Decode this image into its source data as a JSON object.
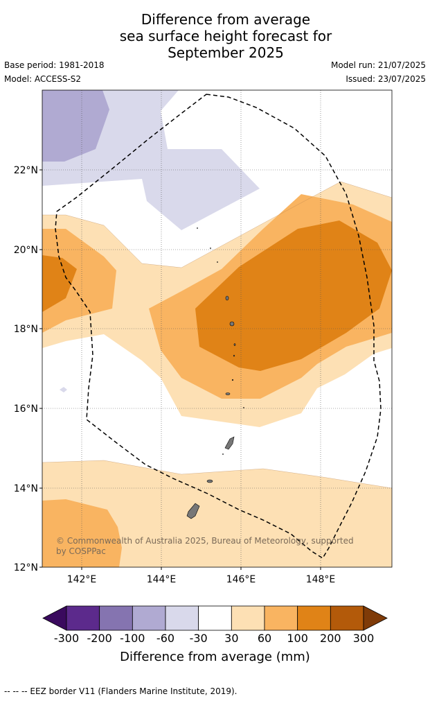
{
  "title_lines": [
    "Difference from average",
    "sea surface height forecast for",
    "September 2025"
  ],
  "left_meta": [
    "Base period: 1981-2018",
    "Model: ACCESS-S2"
  ],
  "right_meta": [
    "Model run: 21/07/2025",
    "Issued: 23/07/2025"
  ],
  "map": {
    "lat_labels": [
      "22°N",
      "20°N",
      "18°N",
      "16°N",
      "14°N",
      "12°N"
    ],
    "lon_labels": [
      "142°E",
      "144°E",
      "146°E",
      "148°E"
    ],
    "credit": [
      "© Commonwealth of Australia 2025, Bureau of Meteorology, supported",
      "by COSPPac"
    ],
    "extent": {
      "lon_min": 141.0,
      "lon_max": 149.8,
      "lat_min": 12.0,
      "lat_max": 24.0
    }
  },
  "colorbar": {
    "ticks": [
      "-300",
      "-200",
      "-100",
      "-60",
      "-30",
      "30",
      "60",
      "100",
      "200",
      "300"
    ],
    "colors": [
      "#3a0a5e",
      "#5c2a8c",
      "#8574b0",
      "#b0aad2",
      "#d9d9eb",
      "#ffffff",
      "#fde0b4",
      "#f9b461",
      "#e08317",
      "#b35a0a",
      "#7f3b08"
    ],
    "title": "Difference from average (mm)"
  },
  "footer": "--  --  -- EEZ border V11 (Flanders Marine Institute, 2019)."
}
